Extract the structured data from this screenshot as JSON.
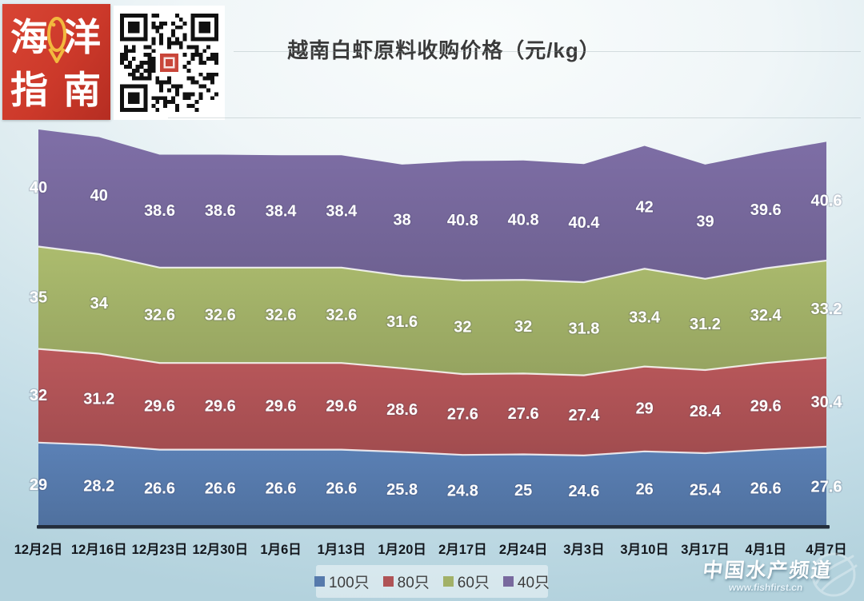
{
  "header": {
    "logo_text": [
      "海",
      "洋",
      "指",
      "南"
    ],
    "title": "越南白虾原料收购价格（元/kg）"
  },
  "chart_data": {
    "type": "area",
    "stacked": true,
    "title": "越南白虾原料收购价格（元/kg）",
    "xlabel": "",
    "ylabel": "",
    "grid": false,
    "legend_position": "bottom",
    "value_labels": true,
    "ylim": [
      0,
      136
    ],
    "categories": [
      "12月2日",
      "12月16日",
      "12月23日",
      "12月30日",
      "1月6日",
      "1月13日",
      "1月20日",
      "2月17日",
      "2月24日",
      "3月3日",
      "3月10日",
      "3月17日",
      "4月1日",
      "4月7日"
    ],
    "series": [
      {
        "name": "100只",
        "color": "#567AAC",
        "values": [
          29,
          28.2,
          26.6,
          26.6,
          26.6,
          26.6,
          25.8,
          24.8,
          25,
          24.6,
          26,
          25.4,
          26.6,
          27.6
        ]
      },
      {
        "name": "80只",
        "color": "#AF5356",
        "values": [
          32,
          31.2,
          29.6,
          29.6,
          29.6,
          29.6,
          28.6,
          27.6,
          27.6,
          27.4,
          29,
          28.4,
          29.6,
          30.4
        ]
      },
      {
        "name": "60只",
        "color": "#A2B168",
        "values": [
          35,
          34,
          32.6,
          32.6,
          32.6,
          32.6,
          31.6,
          32,
          32,
          31.8,
          33.4,
          31.2,
          32.4,
          33.2
        ]
      },
      {
        "name": "40只",
        "color": "#78699E",
        "values": [
          40,
          40,
          38.6,
          38.6,
          38.4,
          38.4,
          38,
          40.8,
          40.8,
          40.4,
          42,
          39,
          39.6,
          40.6
        ]
      }
    ]
  },
  "footer": {
    "watermark": "中国水产频道",
    "site": "www.fishfirst.cn"
  }
}
